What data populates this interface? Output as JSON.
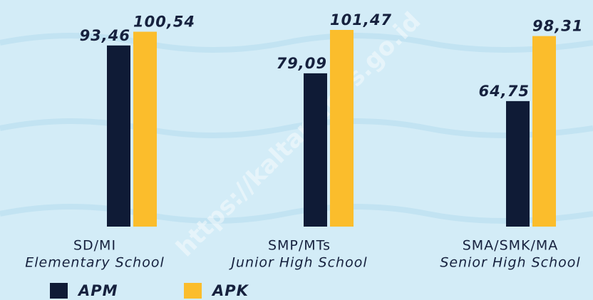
{
  "chart_data": {
    "type": "bar",
    "categories": [
      "SD/MI",
      "SMP/MTs",
      "SMA/SMK/MA"
    ],
    "category_subtitles": [
      "Elementary School",
      "Junior High School",
      "Senior High School"
    ],
    "series": [
      {
        "name": "APM",
        "color": "#0f1b36",
        "values": [
          93.46,
          79.09,
          64.75
        ],
        "value_labels": [
          "93,46",
          "79,09",
          "64,75"
        ]
      },
      {
        "name": "APK",
        "color": "#fbbd2c",
        "values": [
          100.54,
          101.47,
          98.31
        ],
        "value_labels": [
          "100,54",
          "101,47",
          "98,31"
        ]
      }
    ],
    "watermark": "https://kaltara.bps.go.id"
  }
}
